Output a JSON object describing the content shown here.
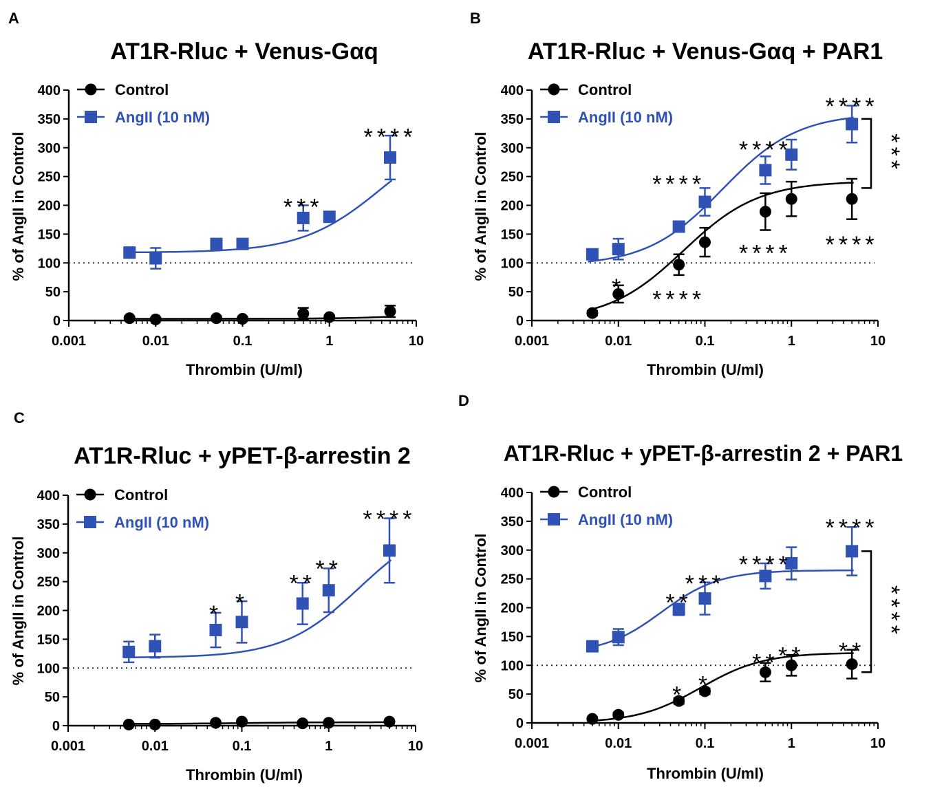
{
  "figure": {
    "x_label": "Thrombin (U/ml)",
    "y_label": "% of AngII in Control",
    "x_ticks": [
      "0.001",
      "0.01",
      "0.1",
      "1",
      "10"
    ],
    "y_ticks": [
      "0",
      "50",
      "100",
      "150",
      "200",
      "250",
      "300",
      "350",
      "400"
    ],
    "colors": {
      "control": "#000000",
      "angii": "#2f52b4"
    }
  },
  "chart_data": [
    {
      "panel": "A",
      "type": "scatter",
      "title": "AT1R-Rluc + Venus-Gαq",
      "xlabel": "Thrombin (U/ml)",
      "ylabel": "% of AngII in Control",
      "xscale": "log",
      "xlim": [
        0.001,
        10
      ],
      "ylim": [
        0,
        400
      ],
      "reference_line": 100,
      "legend": [
        "Control",
        "AngII (10 nM)"
      ],
      "series": [
        {
          "name": "Control",
          "marker": "circle",
          "x": [
            0.005,
            0.01,
            0.05,
            0.1,
            0.5,
            1,
            5
          ],
          "y": [
            4,
            2,
            4,
            3,
            12,
            6,
            16
          ],
          "err": [
            3,
            3,
            3,
            3,
            10,
            3,
            10
          ],
          "fit": {
            "bottom": 3,
            "top": 18,
            "logec50": 1.2,
            "hill": 1.0
          }
        },
        {
          "name": "AngII (10 nM)",
          "marker": "square",
          "x": [
            0.005,
            0.01,
            0.05,
            0.1,
            0.5,
            1,
            5
          ],
          "y": [
            118,
            108,
            133,
            133,
            178,
            180,
            283
          ],
          "err": [
            8,
            18,
            8,
            8,
            22,
            6,
            38
          ],
          "fit": {
            "bottom": 118,
            "top": 340,
            "logec50": 0.6,
            "hill": 0.95
          }
        }
      ],
      "annotations": [
        {
          "text": "***",
          "x": 0.5,
          "y": 200
        },
        {
          "text": "****",
          "x": 5,
          "y": 322
        }
      ],
      "brackets": []
    },
    {
      "panel": "B",
      "type": "scatter",
      "title": "AT1R-Rluc + Venus-Gαq + PAR1",
      "xlabel": "Thrombin (U/ml)",
      "ylabel": "% of AngII in Control",
      "xscale": "log",
      "xlim": [
        0.001,
        10
      ],
      "ylim": [
        0,
        400
      ],
      "reference_line": 100,
      "legend": [
        "Control",
        "AngII (10 nM)"
      ],
      "series": [
        {
          "name": "Control",
          "marker": "circle",
          "x": [
            0.005,
            0.01,
            0.05,
            0.1,
            0.5,
            1,
            5
          ],
          "y": [
            13,
            46,
            97,
            136,
            189,
            211,
            211
          ],
          "err": [
            4,
            15,
            18,
            25,
            32,
            30,
            35
          ],
          "fit": {
            "bottom": 0,
            "top": 242,
            "logec50": -1.25,
            "hill": 1.0
          }
        },
        {
          "name": "AngII (10 nM)",
          "marker": "square",
          "x": [
            0.005,
            0.01,
            0.05,
            0.1,
            0.5,
            1,
            5
          ],
          "y": [
            115,
            124,
            163,
            206,
            261,
            288,
            341
          ],
          "err": [
            8,
            18,
            8,
            24,
            24,
            26,
            32
          ],
          "fit": {
            "bottom": 95,
            "top": 360,
            "logec50": -0.8,
            "hill": 1.0
          }
        }
      ],
      "annotations": [
        {
          "text": "*",
          "x": 0.01,
          "y": 61
        },
        {
          "text": "****",
          "x": 0.05,
          "y": 40
        },
        {
          "text": "****",
          "x": 0.05,
          "y": 240
        },
        {
          "text": "****",
          "x": 0.5,
          "y": 120
        },
        {
          "text": "****",
          "x": 0.5,
          "y": 300
        },
        {
          "text": "****",
          "x": 5,
          "y": 135
        },
        {
          "text": "****",
          "x": 5,
          "y": 375
        }
      ],
      "brackets": [
        {
          "y1": 350,
          "y2": 230,
          "text": "***"
        }
      ]
    },
    {
      "panel": "C",
      "type": "scatter",
      "title": "AT1R-Rluc + yPET-β-arrestin 2",
      "xlabel": "Thrombin (U/ml)",
      "ylabel": "% of AngII in Control",
      "xscale": "log",
      "xlim": [
        0.001,
        10
      ],
      "ylim": [
        0,
        400
      ],
      "reference_line": 100,
      "legend": [
        "Control",
        "AngII (10 nM)"
      ],
      "series": [
        {
          "name": "Control",
          "marker": "circle",
          "x": [
            0.005,
            0.01,
            0.05,
            0.1,
            0.5,
            1,
            5
          ],
          "y": [
            2,
            2,
            5,
            7,
            4,
            5,
            7
          ],
          "err": [
            2,
            2,
            2,
            3,
            2,
            2,
            2
          ],
          "fit": {
            "bottom": 3,
            "top": 6,
            "logec50": -1.0,
            "hill": 1.0
          }
        },
        {
          "name": "AngII (10 nM)",
          "marker": "square",
          "x": [
            0.005,
            0.01,
            0.05,
            0.1,
            0.5,
            1,
            5
          ],
          "y": [
            128,
            138,
            166,
            180,
            212,
            235,
            304
          ],
          "err": [
            18,
            20,
            30,
            36,
            36,
            38,
            56
          ],
          "fit": {
            "bottom": 118,
            "top": 360,
            "logec50": 0.35,
            "hill": 1.0
          }
        }
      ],
      "annotations": [
        {
          "text": "*",
          "x": 0.05,
          "y": 197
        },
        {
          "text": "*",
          "x": 0.1,
          "y": 217
        },
        {
          "text": "**",
          "x": 0.5,
          "y": 250
        },
        {
          "text": "**",
          "x": 1,
          "y": 275
        },
        {
          "text": "****",
          "x": 5,
          "y": 362
        }
      ],
      "brackets": []
    },
    {
      "panel": "D",
      "type": "scatter",
      "title": "AT1R-Rluc + yPET-β-arrestin 2 + PAR1",
      "xlabel": "Thrombin (U/ml)",
      "ylabel": "% of AngII in Control",
      "xscale": "log",
      "xlim": [
        0.001,
        10
      ],
      "ylim": [
        0,
        400
      ],
      "reference_line": 100,
      "legend": [
        "Control",
        "AngII (10 nM)"
      ],
      "series": [
        {
          "name": "Control",
          "marker": "circle",
          "x": [
            0.005,
            0.01,
            0.05,
            0.1,
            0.5,
            1,
            5
          ],
          "y": [
            7,
            14,
            38,
            55,
            88,
            100,
            102
          ],
          "err": [
            3,
            4,
            5,
            5,
            16,
            18,
            25
          ],
          "fit": {
            "bottom": 0,
            "top": 122,
            "logec50": -1.05,
            "hill": 1.2
          }
        },
        {
          "name": "AngII (10 nM)",
          "marker": "square",
          "x": [
            0.005,
            0.01,
            0.05,
            0.1,
            0.5,
            1,
            5
          ],
          "y": [
            133,
            149,
            197,
            216,
            255,
            277,
            298
          ],
          "err": [
            8,
            14,
            10,
            28,
            22,
            28,
            42
          ],
          "fit": {
            "bottom": 120,
            "top": 265,
            "logec50": -1.5,
            "hill": 1.3
          }
        }
      ],
      "annotations": [
        {
          "text": "*",
          "x": 0.05,
          "y": 52
        },
        {
          "text": "*",
          "x": 0.1,
          "y": 70
        },
        {
          "text": "**",
          "x": 0.5,
          "y": 108
        },
        {
          "text": "**",
          "x": 1,
          "y": 120
        },
        {
          "text": "**",
          "x": 5,
          "y": 128
        },
        {
          "text": "**",
          "x": 0.05,
          "y": 212
        },
        {
          "text": "***",
          "x": 0.1,
          "y": 245
        },
        {
          "text": "****",
          "x": 0.5,
          "y": 278
        },
        {
          "text": "****",
          "x": 5,
          "y": 342
        }
      ],
      "brackets": [
        {
          "y1": 298,
          "y2": 88,
          "text": "****"
        }
      ]
    }
  ]
}
